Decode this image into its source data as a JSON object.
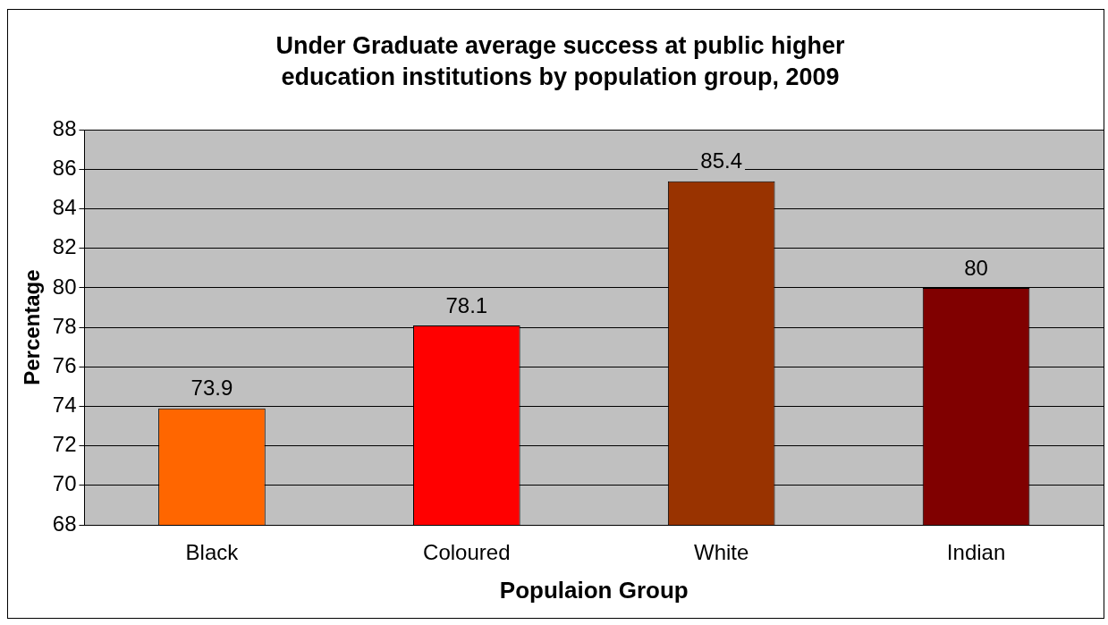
{
  "chart_data": {
    "type": "bar",
    "title": "Under Graduate average success at public higher education institutions by population group, 2009",
    "xlabel": "Populaion Group",
    "ylabel": "Percentage",
    "categories": [
      "Black",
      "Coloured",
      "White",
      "Indian"
    ],
    "values": [
      73.9,
      78.1,
      85.4,
      80
    ],
    "colors": [
      "#ff6600",
      "#ff0000",
      "#993300",
      "#800000"
    ],
    "ylim": [
      68,
      88
    ],
    "yticks": [
      68,
      70,
      72,
      74,
      76,
      78,
      80,
      82,
      84,
      86,
      88
    ],
    "grid": "y",
    "data_labels": true,
    "legend": false
  }
}
